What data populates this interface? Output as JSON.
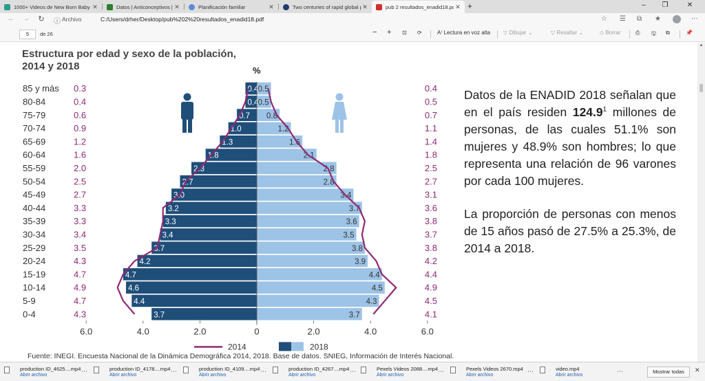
{
  "browser": {
    "tabs": [
      {
        "title": "1000+ Videos de New Born Baby",
        "color": "#2a9d8f"
      },
      {
        "title": "Datos | Anticonceptivos | Medic",
        "color": "#2e7d32"
      },
      {
        "title": "Planificación familiar",
        "color": "#5b8dd6"
      },
      {
        "title": "Two centuries of rapid global po",
        "color": "#1f3d6b"
      },
      {
        "title": "pub 2 resultados_enadid18.pdf",
        "color": "#d32f2f"
      }
    ],
    "new_tab_glyph": "+",
    "site_info": "Archivo",
    "url": "C:/Users/drher/Desktop/pub%202%20resultados_enadid18.pdf"
  },
  "pdf_toolbar": {
    "page_current": "5",
    "page_total": "de 26",
    "read_aloud": "Lectura en voz alta",
    "draw": "Dibujar",
    "highlight": "Resaltar",
    "erase": "Borrar"
  },
  "document": {
    "chart_title": "Estructura por edad y sexo de la población, 2014 y 2018",
    "percent_label": "%",
    "summary": {
      "p1_before": "Datos de la ENADID 2018 señalan que en el país residen ",
      "p1_bold": "124.9",
      "p1_sup": "1",
      "p1_after": " millones de personas, de las cuales 51.1% son mujeres y 48.9% son hombres; lo que representa una relación de 96 varones por cada 100 mujeres.",
      "p2": "La proporción de personas con menos de 15 años pasó de 27.5% a 25.3%, de 2014 a 2018."
    },
    "source_note": "Fuente:  INEGI. Encuesta Nacional de la Dinámica Demográfica 2014, 2018. Base de datos. SNIEG, Información de Interés Nacional."
  },
  "colors": {
    "male_2018": "#1f4e79",
    "female_2018": "#9dc3e6",
    "line_2014": "#8e2a74",
    "age_label": "#333333",
    "pct_2014_text": "#8e2a74"
  },
  "chart_data": {
    "type": "bar",
    "title": "Estructura por edad y sexo de la población, 2014 y 2018",
    "unit_label": "%",
    "age_groups": [
      "85 y más",
      "80-84",
      "75-79",
      "70-74",
      "65-69",
      "60-64",
      "55-59",
      "50-54",
      "45-49",
      "40-44",
      "35-39",
      "30-34",
      "25-29",
      "20-24",
      "15-19",
      "10-14",
      "5-9",
      "0-4"
    ],
    "x_ticks": [
      "6.0",
      "4.0",
      "2.0",
      "0",
      "2.0",
      "4.0",
      "6.0"
    ],
    "xlim": [
      -6,
      6
    ],
    "legend_position": "bottom",
    "series": [
      {
        "name": "2018",
        "side": "male",
        "type": "bar",
        "values": [
          0.4,
          0.4,
          0.7,
          1.0,
          1.3,
          1.8,
          2.3,
          2.7,
          3.0,
          3.2,
          3.3,
          3.4,
          3.7,
          4.2,
          4.7,
          4.6,
          4.4,
          3.7
        ]
      },
      {
        "name": "2018",
        "side": "female",
        "type": "bar",
        "values": [
          0.5,
          0.5,
          0.8,
          1.2,
          1.6,
          2.1,
          2.8,
          2.8,
          3.4,
          3.7,
          3.6,
          3.5,
          3.8,
          3.9,
          4.4,
          4.5,
          4.3,
          3.7
        ]
      },
      {
        "name": "2014",
        "side": "male",
        "type": "line",
        "values": [
          0.3,
          0.4,
          0.6,
          0.9,
          1.2,
          1.6,
          2.0,
          2.5,
          2.7,
          3.3,
          3.3,
          3.4,
          3.5,
          4.3,
          4.7,
          4.9,
          4.7,
          4.3
        ]
      },
      {
        "name": "2014",
        "side": "female",
        "type": "line",
        "values": [
          0.4,
          0.5,
          0.7,
          1.1,
          1.4,
          1.8,
          2.5,
          2.7,
          3.1,
          3.6,
          3.8,
          3.7,
          3.8,
          4.2,
          4.4,
          4.9,
          4.5,
          4.1
        ]
      }
    ],
    "legend": [
      "2014",
      "2018"
    ]
  },
  "downloads": {
    "items": [
      {
        "name": "production ID_4625....mp4",
        "action": "Abrir archivo"
      },
      {
        "name": "production ID_4178....mp4",
        "action": "Abrir archivo"
      },
      {
        "name": "production ID_4109....mp4",
        "action": "Abrir archivo"
      },
      {
        "name": "production ID_4267....mp4",
        "action": "Abrir archivo"
      },
      {
        "name": "Pexels Videos 2088....mp4",
        "action": "Abrir archivo"
      },
      {
        "name": "Pexels Videos 2670.mp4",
        "action": "Abrir archivo"
      },
      {
        "name": "video.mp4",
        "action": "Abrir archivo"
      }
    ],
    "show_all": "Mostrar todas"
  }
}
